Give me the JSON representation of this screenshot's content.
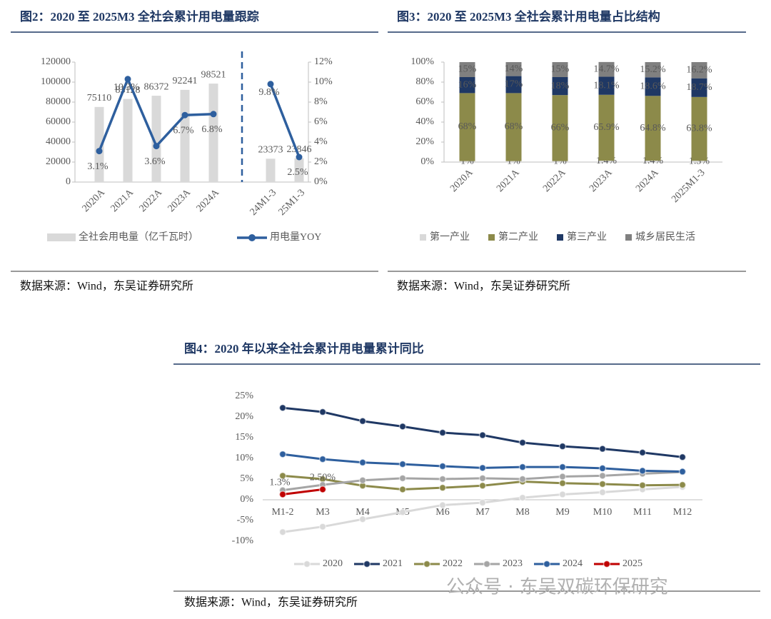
{
  "chart_data": [
    {
      "type": "bar",
      "title": "图2：2020 至 2025M3 全社会累计用电量跟踪",
      "categories": [
        "2020A",
        "2021A",
        "2022A",
        "2023A",
        "2024A",
        null,
        "24M1-3",
        "25M1-3"
      ],
      "series": [
        {
          "name": "全社会用电量（亿千瓦时）",
          "type": "bar",
          "color": "#d9d9d9",
          "values": [
            75110,
            83128,
            86372,
            92241,
            98521,
            null,
            23373,
            23846
          ]
        },
        {
          "name": "用电量YOY",
          "type": "line",
          "axis": "y2",
          "color": "#2e5f9e",
          "values": [
            3.1,
            10.3,
            3.6,
            6.7,
            6.8,
            null,
            9.8,
            2.5
          ],
          "value_labels": [
            "3.1%",
            "10.3%",
            "3.6%",
            "6.7%",
            "6.8%",
            null,
            "9.8%",
            "2.5%"
          ]
        }
      ],
      "ylim": [
        0,
        120000
      ],
      "yticks": [
        0,
        20000,
        40000,
        60000,
        80000,
        100000,
        120000
      ],
      "y2lim": [
        0,
        12
      ],
      "y2ticks": [
        {
          "value": 0,
          "label": "0%"
        },
        {
          "value": 2,
          "label": "2%"
        },
        {
          "value": 4,
          "label": "4%"
        },
        {
          "value": 6,
          "label": "6%"
        },
        {
          "value": 8,
          "label": "8%"
        },
        {
          "value": 10,
          "label": "10%"
        },
        {
          "value": 12,
          "label": "12%"
        }
      ],
      "source": "数据来源：Wind，东吴证券研究所"
    },
    {
      "type": "stacked_bar",
      "title": "图3：2020 至 2025M3 全社会累计用电量占比结构",
      "categories": [
        "2020A",
        "2021A",
        "2022A",
        "2023A",
        "2024A",
        "2025M1-3"
      ],
      "series": [
        {
          "name": "第一产业",
          "color": "#d9d9d9",
          "values": [
            1,
            1,
            1,
            1.4,
            1.4,
            1.3
          ],
          "value_labels": [
            "1%",
            "1%",
            "1%",
            "1.4%",
            "1.4%",
            "1.3%"
          ]
        },
        {
          "name": "第二产业",
          "color": "#8c8a4a",
          "values": [
            68,
            68,
            66,
            65.9,
            64.8,
            63.8
          ],
          "value_labels": [
            "68%",
            "68%",
            "66%",
            "65.9%",
            "64.8%",
            "63.8%"
          ]
        },
        {
          "name": "第三产业",
          "color": "#1f3864",
          "values": [
            16,
            17,
            18,
            18.1,
            18.6,
            18.7
          ],
          "value_labels": [
            "16%",
            "17%",
            "18%",
            "18.1%",
            "18.6%",
            "18.7%"
          ]
        },
        {
          "name": "城乡居民生活",
          "color": "#808080",
          "values": [
            15,
            14,
            15,
            14.7,
            15.2,
            16.2
          ],
          "value_labels": [
            "15%",
            "14%",
            "15%",
            "14.7%",
            "15.2%",
            "16.2%"
          ]
        }
      ],
      "ylim": [
        0,
        100
      ],
      "yticks": [
        {
          "value": 0,
          "label": "0%"
        },
        {
          "value": 20,
          "label": "20%"
        },
        {
          "value": 40,
          "label": "40%"
        },
        {
          "value": 60,
          "label": "60%"
        },
        {
          "value": 80,
          "label": "80%"
        },
        {
          "value": 100,
          "label": "100%"
        }
      ],
      "source": "数据来源：Wind，东吴证券研究所"
    },
    {
      "type": "line",
      "title": "图4：2020 年以来全社会累计用电量累计同比",
      "categories": [
        "M1-2",
        "M3",
        "M4",
        "M5",
        "M6",
        "M7",
        "M8",
        "M9",
        "M10",
        "M11",
        "M12"
      ],
      "series": [
        {
          "name": "2020",
          "color": "#d9d9d9",
          "values": [
            -7.8,
            -6.5,
            -4.7,
            -3.0,
            -1.3,
            -0.7,
            0.5,
            1.3,
            1.8,
            2.5,
            3.1
          ]
        },
        {
          "name": "2021",
          "color": "#1f3864",
          "values": [
            22.2,
            21.2,
            19.0,
            17.7,
            16.2,
            15.6,
            13.8,
            12.9,
            12.3,
            11.4,
            10.3
          ]
        },
        {
          "name": "2022",
          "color": "#8c8a4a",
          "values": [
            5.8,
            5.0,
            3.4,
            2.5,
            2.9,
            3.4,
            4.4,
            4.0,
            3.8,
            3.5,
            3.6
          ]
        },
        {
          "name": "2023",
          "color": "#a5a5a5",
          "values": [
            2.3,
            3.6,
            4.7,
            5.2,
            5.0,
            5.2,
            5.0,
            5.6,
            5.8,
            6.3,
            6.7
          ]
        },
        {
          "name": "2024",
          "color": "#2e5f9e",
          "values": [
            11.0,
            9.8,
            9.0,
            8.6,
            8.1,
            7.7,
            7.9,
            7.9,
            7.6,
            7.0,
            6.8
          ]
        },
        {
          "name": "2025",
          "color": "#c00000",
          "values": [
            1.3,
            2.5,
            null,
            null,
            null,
            null,
            null,
            null,
            null,
            null,
            null
          ],
          "value_labels": [
            "1.3%",
            "2.50%",
            null,
            null,
            null,
            null,
            null,
            null,
            null,
            null,
            null
          ]
        }
      ],
      "ylim": [
        -10,
        25
      ],
      "yticks": [
        {
          "value": -10,
          "label": "-10%"
        },
        {
          "value": -5,
          "label": "-5%"
        },
        {
          "value": 0,
          "label": "0%"
        },
        {
          "value": 5,
          "label": "5%"
        },
        {
          "value": 10,
          "label": "10%"
        },
        {
          "value": 15,
          "label": "15%"
        },
        {
          "value": 20,
          "label": "20%"
        },
        {
          "value": 25,
          "label": "25%"
        }
      ],
      "source": "数据来源：Wind，东吴证券研究所"
    }
  ],
  "watermark": "公众号 · 东吴双碳环保研究"
}
